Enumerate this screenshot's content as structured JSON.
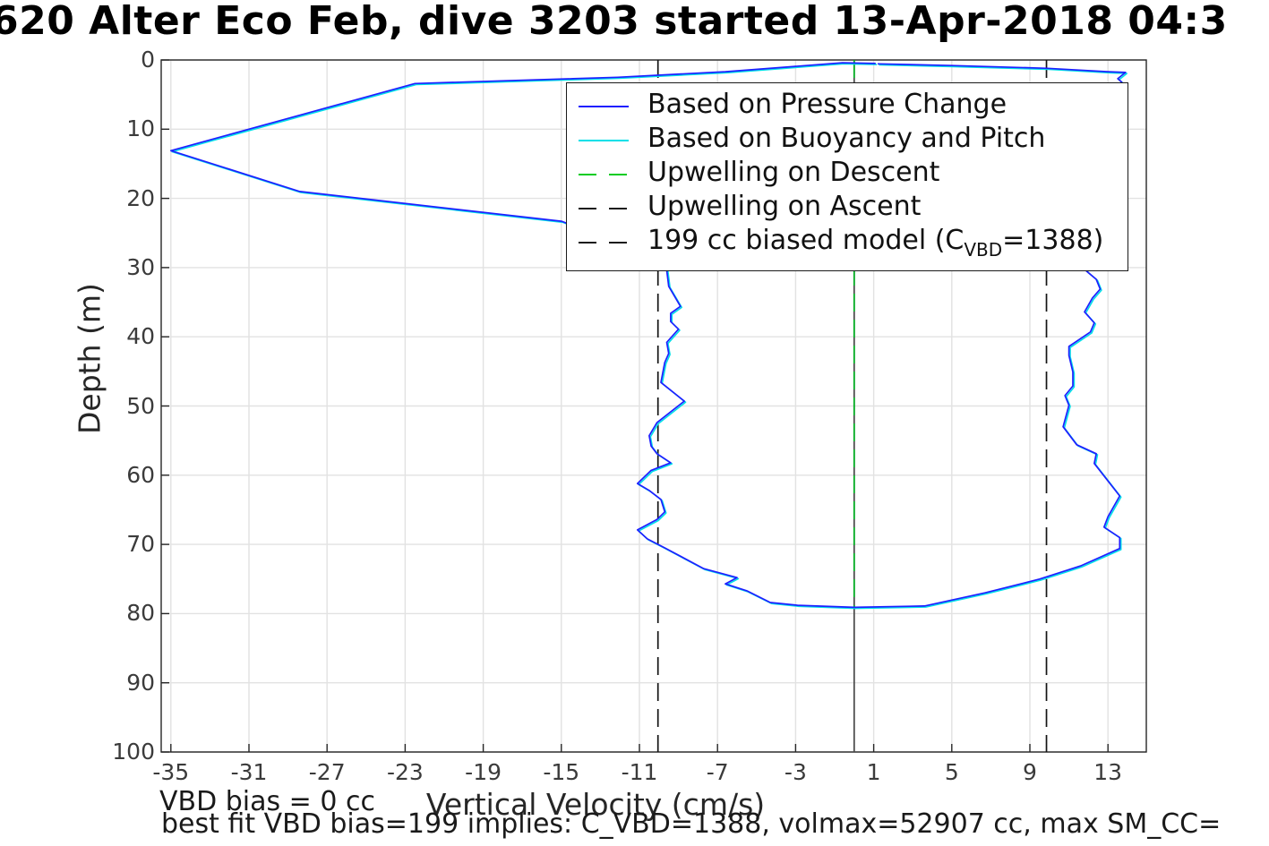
{
  "title": "620 Alter Eco Feb, dive 3203 started 13-Apr-2018 04:3",
  "axes": {
    "xlabel": "Vertical Velocity (cm/s)",
    "ylabel": "Depth (m)",
    "x_tick_labels": [
      "-35",
      "-31",
      "-27",
      "-23",
      "-19",
      "-15",
      "-11",
      "-7",
      "-3",
      "1",
      "5",
      "9",
      "13"
    ],
    "y_tick_labels": [
      "0",
      "10",
      "20",
      "30",
      "40",
      "50",
      "60",
      "70",
      "80",
      "90",
      "100"
    ]
  },
  "annotations": {
    "vbd_bias": "VBD bias = 0 cc",
    "best_fit": "best fit VBD bias=199 implies: C_VBD=1388, volmax=52907 cc, max SM_CC="
  },
  "legend": {
    "items": [
      {
        "label_pre": "Based on Pressure Change",
        "label_sub": "",
        "label_post": "",
        "color": "#1f1fff",
        "dash": "solid"
      },
      {
        "label_pre": "Based on Buoyancy and Pitch",
        "label_sub": "",
        "label_post": "",
        "color": "#00e0e8",
        "dash": "solid"
      },
      {
        "label_pre": "Upwelling on Descent",
        "label_sub": "",
        "label_post": "",
        "color": "#00cc22",
        "dash": "dashed"
      },
      {
        "label_pre": "Upwelling on Ascent",
        "label_sub": "",
        "label_post": "",
        "color": "#1a1a1a",
        "dash": "dashed"
      },
      {
        "label_pre": "199 cc biased model (C",
        "label_sub": "VBD",
        "label_post": "=1388)",
        "color": "#1a1a1a",
        "dash": "dashed"
      }
    ]
  },
  "colors": {
    "pressure_line": "#1f1fff",
    "buoyancy_line": "#00e0e8",
    "upwelling_descent": "#00b321",
    "upwelling_ascent": "#474747",
    "model_dashed": "#141414",
    "grid": "#e2e2e2",
    "axis": "#262626",
    "tick_text": "#3b3b3b"
  },
  "chart_data": {
    "type": "line",
    "title": "620 Alter Eco Feb, dive 3203 started 13-Apr-2018 04:3",
    "xlabel": "Vertical Velocity (cm/s)",
    "ylabel": "Depth (m)",
    "xlim": [
      -35.5,
      15
    ],
    "ylim": [
      0,
      100
    ],
    "y_axis_reversed": true,
    "grid": true,
    "legend_position": "inside upper right",
    "x_ticks": [
      -35,
      -31,
      -27,
      -23,
      -19,
      -15,
      -11,
      -7,
      -3,
      1,
      5,
      9,
      13
    ],
    "y_ticks": [
      0,
      10,
      20,
      30,
      40,
      50,
      60,
      70,
      80,
      90,
      100
    ],
    "series": [
      {
        "name": "Based on Pressure Change",
        "kind": "profile",
        "color": "#1f1fff",
        "style": "solid",
        "points_vd": [
          [
            1.1,
            0.5
          ],
          [
            -0.6,
            0.4
          ],
          [
            -6.6,
            1.7
          ],
          [
            -12.1,
            2.5
          ],
          [
            -14.4,
            2.7
          ],
          [
            -22.5,
            3.4
          ],
          [
            -35.0,
            13.1
          ],
          [
            -28.4,
            19.0
          ],
          [
            -15.0,
            23.3
          ],
          [
            -11.5,
            27.0
          ],
          [
            -9.6,
            30.4
          ],
          [
            -9.5,
            32.7
          ],
          [
            -8.9,
            35.6
          ],
          [
            -9.4,
            36.6
          ],
          [
            -9.4,
            37.8
          ],
          [
            -9.0,
            38.9
          ],
          [
            -9.6,
            40.8
          ],
          [
            -9.5,
            42.4
          ],
          [
            -9.7,
            43.7
          ],
          [
            -9.9,
            46.6
          ],
          [
            -8.7,
            49.3
          ],
          [
            -10.1,
            52.4
          ],
          [
            -10.5,
            54.3
          ],
          [
            -10.4,
            55.8
          ],
          [
            -10.1,
            56.9
          ],
          [
            -9.4,
            58.2
          ],
          [
            -10.4,
            59.3
          ],
          [
            -11.1,
            61.2
          ],
          [
            -10.5,
            62.2
          ],
          [
            -9.9,
            63.5
          ],
          [
            -9.7,
            65.3
          ],
          [
            -10.1,
            66.4
          ],
          [
            -11.1,
            67.9
          ],
          [
            -10.6,
            69.2
          ],
          [
            -9.7,
            70.5
          ],
          [
            -7.7,
            73.5
          ],
          [
            -6.0,
            74.8
          ],
          [
            -6.6,
            75.7
          ],
          [
            -5.5,
            76.7
          ],
          [
            -4.3,
            78.4
          ],
          [
            -2.9,
            78.8
          ],
          [
            0.0,
            79.1
          ],
          [
            3.6,
            78.9
          ],
          [
            6.7,
            77.0
          ],
          [
            9.5,
            75.0
          ],
          [
            11.6,
            73.1
          ],
          [
            13.6,
            70.6
          ],
          [
            13.6,
            69.0
          ],
          [
            12.8,
            67.5
          ],
          [
            13.0,
            66.0
          ],
          [
            13.6,
            63.0
          ],
          [
            12.3,
            58.3
          ],
          [
            12.4,
            56.9
          ],
          [
            11.4,
            55.6
          ],
          [
            10.7,
            53.0
          ],
          [
            11.0,
            49.9
          ],
          [
            10.8,
            48.5
          ],
          [
            11.2,
            47.1
          ],
          [
            11.2,
            45.1
          ],
          [
            11.0,
            42.7
          ],
          [
            11.0,
            41.4
          ],
          [
            12.1,
            39.3
          ],
          [
            12.3,
            38.0
          ],
          [
            11.8,
            36.4
          ],
          [
            12.2,
            34.4
          ],
          [
            12.6,
            33.1
          ],
          [
            12.4,
            31.7
          ],
          [
            11.9,
            30.5
          ],
          [
            12.5,
            20.0
          ],
          [
            13.0,
            10.0
          ],
          [
            13.5,
            4.0
          ],
          [
            13.7,
            3.2
          ],
          [
            13.5,
            2.7
          ],
          [
            13.9,
            1.8
          ],
          [
            13.0,
            1.7
          ],
          [
            9.9,
            1.2
          ],
          [
            5.0,
            0.8
          ],
          [
            1.2,
            0.55
          ]
        ]
      },
      {
        "name": "Based on Buoyancy and Pitch",
        "kind": "profile",
        "color": "#00e0e8",
        "style": "solid",
        "points_note": "visually coincides with pressure-based curve (hidden beneath it)"
      },
      {
        "name": "Upwelling on Ascent",
        "kind": "vline",
        "x": 0.0,
        "depth_range": [
          0,
          100
        ],
        "color": "#474747",
        "style": "solid"
      },
      {
        "name": "Upwelling on Descent",
        "kind": "vline",
        "x": 0.0,
        "depth_range": [
          0,
          79.1
        ],
        "color": "#00b321",
        "style": "dashed"
      },
      {
        "name": "199 cc biased model (C_VBD=1388) - descent branch",
        "kind": "vline",
        "x": -10.05,
        "depth_range": [
          0,
          100
        ],
        "color": "#141414",
        "style": "dashed"
      },
      {
        "name": "199 cc biased model (C_VBD=1388) - ascent branch",
        "kind": "vline",
        "x": 9.85,
        "depth_range": [
          0,
          100
        ],
        "color": "#141414",
        "style": "dashed"
      }
    ]
  }
}
